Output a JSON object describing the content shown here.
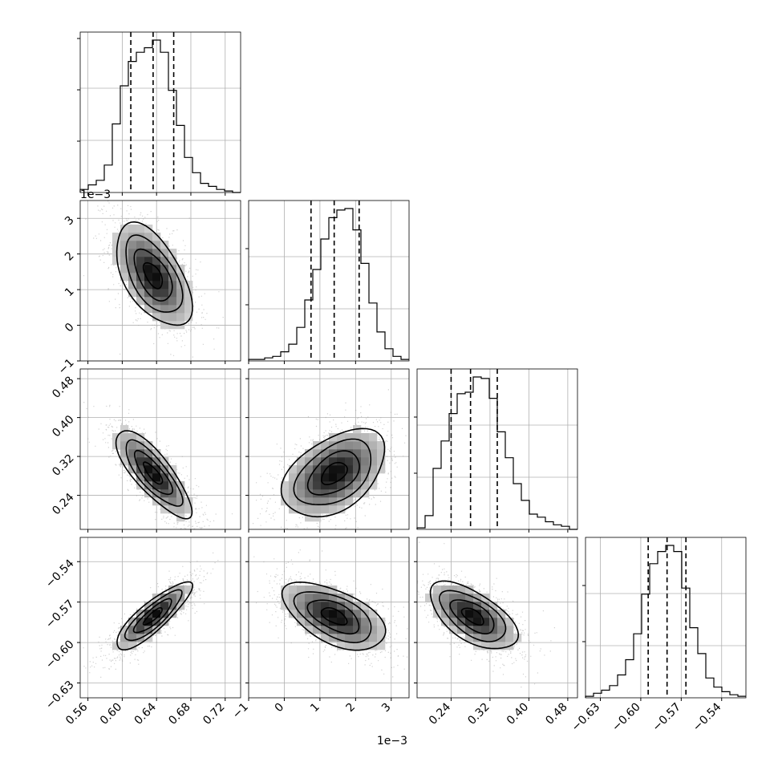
{
  "chart_data": {
    "type": "corner",
    "grid": true,
    "parameters": [
      {
        "range": [
          0.551,
          0.738
        ],
        "ticks": [
          0.56,
          0.6,
          0.64,
          0.68,
          0.72
        ],
        "tick_labels": [
          "0.56",
          "0.60",
          "0.64",
          "0.68",
          "0.72"
        ],
        "scale_label": "",
        "quantiles": [
          0.61,
          0.636,
          0.66
        ]
      },
      {
        "range": [
          -0.001,
          0.0035
        ],
        "ticks": [
          -0.001,
          0,
          0.001,
          0.002,
          0.003
        ],
        "tick_labels": [
          "−1",
          "0",
          "1",
          "2",
          "3"
        ],
        "scale_label": "1e−3",
        "quantiles": [
          0.00075,
          0.0014,
          0.0021
        ]
      },
      {
        "range": [
          0.17,
          0.5
        ],
        "ticks": [
          0.24,
          0.32,
          0.4,
          0.48
        ],
        "tick_labels": [
          "0.24",
          "0.32",
          "0.40",
          "0.48"
        ],
        "scale_label": "",
        "quantiles": [
          0.24,
          0.28,
          0.335
        ]
      },
      {
        "range": [
          -0.641,
          -0.522
        ],
        "ticks": [
          -0.63,
          -0.6,
          -0.57,
          -0.54
        ],
        "tick_labels": [
          "−0.63",
          "−0.60",
          "−0.57",
          "−0.54"
        ],
        "scale_label": "",
        "quantiles": [
          -0.5945,
          -0.5805,
          -0.5665
        ]
      }
    ],
    "marginals": [
      {
        "hist": [
          0.02,
          0.05,
          0.08,
          0.18,
          0.45,
          0.7,
          0.86,
          0.92,
          0.95,
          1.0,
          0.92,
          0.67,
          0.44,
          0.23,
          0.13,
          0.06,
          0.04,
          0.02,
          0.01,
          0.0
        ]
      },
      {
        "hist": [
          0.01,
          0.01,
          0.02,
          0.03,
          0.06,
          0.11,
          0.22,
          0.4,
          0.6,
          0.8,
          0.94,
          0.99,
          1.0,
          0.86,
          0.64,
          0.38,
          0.19,
          0.08,
          0.03,
          0.01
        ]
      },
      {
        "hist": [
          0.01,
          0.09,
          0.4,
          0.58,
          0.76,
          0.89,
          0.9,
          1.0,
          0.99,
          0.86,
          0.64,
          0.47,
          0.3,
          0.19,
          0.1,
          0.08,
          0.05,
          0.03,
          0.02,
          0.0
        ]
      },
      {
        "hist": [
          0.01,
          0.03,
          0.05,
          0.08,
          0.15,
          0.25,
          0.42,
          0.68,
          0.88,
          0.96,
          1.0,
          0.96,
          0.72,
          0.46,
          0.29,
          0.13,
          0.07,
          0.04,
          0.02,
          0.01
        ]
      }
    ],
    "pairs": [
      {
        "row": 1,
        "col": 0,
        "center": [
          0.636,
          0.0014
        ],
        "sd": [
          0.022,
          0.00072
        ],
        "corr": -0.55
      },
      {
        "row": 2,
        "col": 0,
        "center": [
          0.636,
          0.285
        ],
        "sd": [
          0.022,
          0.045
        ],
        "corr": -0.8
      },
      {
        "row": 2,
        "col": 1,
        "center": [
          0.0014,
          0.285
        ],
        "sd": [
          0.00072,
          0.045
        ],
        "corr": 0.45
      },
      {
        "row": 3,
        "col": 0,
        "center": [
          0.636,
          -0.5805
        ],
        "sd": [
          0.022,
          0.0125
        ],
        "corr": 0.85
      },
      {
        "row": 3,
        "col": 1,
        "center": [
          0.0014,
          -0.5805
        ],
        "sd": [
          0.00072,
          0.0125
        ],
        "corr": -0.55
      },
      {
        "row": 3,
        "col": 2,
        "center": [
          0.285,
          -0.5805
        ],
        "sd": [
          0.045,
          0.0125
        ],
        "corr": -0.6
      }
    ]
  }
}
